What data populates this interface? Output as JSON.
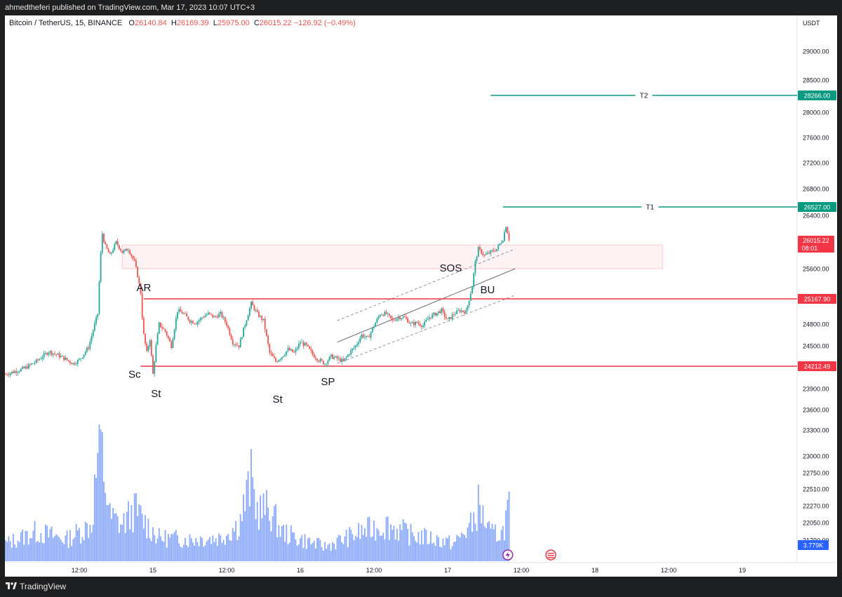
{
  "header": {
    "published_line": "ahmedtheferi published on TradingView.com, Mar 17, 2023 10:07 UTC+3"
  },
  "footer": {
    "brand": "TradingView"
  },
  "legend": {
    "symbol": "Bitcoin / TetherUS, 15, BINANCE",
    "open_label": "O",
    "open": "26140.84",
    "high_label": "H",
    "high": "26169.39",
    "low_label": "L",
    "low": "25975.00",
    "close_label": "C",
    "close": "26015.22",
    "change": "−126.92 (−0.49%)"
  },
  "chart_data": {
    "type": "candlestick",
    "symbol": "BTCUSDT",
    "interval": "15",
    "currency_label": "USDT",
    "price_axis": {
      "ticks": [
        29000,
        28500,
        28000,
        27600,
        27200,
        26800,
        26400,
        25600,
        24800,
        24500,
        23900,
        23600,
        23300,
        23000,
        22750,
        22510,
        22270,
        22050,
        21790
      ],
      "tick_labels": [
        "29000.00",
        "28500.00",
        "28000.00",
        "27600.00",
        "27200.00",
        "26800.00",
        "26400.00",
        "25600.00",
        "24800.00",
        "24500.00",
        "23900.00",
        "23600.00",
        "23300.00",
        "23000.00",
        "22750.00",
        "22510.00",
        "22270.00",
        "22050.00",
        "21790.00"
      ]
    },
    "time_axis": {
      "labels": [
        {
          "t": 12,
          "text": "12:00"
        },
        {
          "t": 24,
          "text": "15"
        },
        {
          "t": 36,
          "text": "12:00"
        },
        {
          "t": 48,
          "text": "16"
        },
        {
          "t": 60,
          "text": "12:00"
        },
        {
          "t": 72,
          "text": "17"
        },
        {
          "t": 84,
          "text": "12:00"
        },
        {
          "t": 96,
          "text": "18"
        },
        {
          "t": 108,
          "text": "12:00"
        },
        {
          "t": 120,
          "text": "19"
        }
      ]
    },
    "price_path": [
      [
        0,
        24100
      ],
      [
        3,
        24180
      ],
      [
        5,
        24280
      ],
      [
        7,
        24420
      ],
      [
        9,
        24350
      ],
      [
        11,
        24250
      ],
      [
        12,
        24300
      ],
      [
        13.5,
        24480
      ],
      [
        15,
        24950
      ],
      [
        15.3,
        25500
      ],
      [
        15.7,
        26150
      ],
      [
        16.2,
        25950
      ],
      [
        17,
        25800
      ],
      [
        18,
        26000
      ],
      [
        19,
        25850
      ],
      [
        20,
        25900
      ],
      [
        21,
        25700
      ],
      [
        21.5,
        25500
      ],
      [
        22,
        25250
      ],
      [
        22.4,
        24700
      ],
      [
        23,
        24400
      ],
      [
        23.5,
        24600
      ],
      [
        24,
        24100
      ],
      [
        24.5,
        24500
      ],
      [
        25,
        24800
      ],
      [
        26,
        24700
      ],
      [
        27,
        24500
      ],
      [
        28,
        25000
      ],
      [
        29,
        24950
      ],
      [
        30,
        24850
      ],
      [
        31,
        24820
      ],
      [
        32,
        24900
      ],
      [
        33,
        24950
      ],
      [
        34,
        24900
      ],
      [
        35,
        24950
      ],
      [
        36,
        24800
      ],
      [
        37,
        24550
      ],
      [
        38,
        24500
      ],
      [
        39,
        24800
      ],
      [
        40,
        25100
      ],
      [
        41,
        24950
      ],
      [
        42,
        24850
      ],
      [
        43,
        24400
      ],
      [
        44,
        24280
      ],
      [
        45,
        24350
      ],
      [
        46,
        24450
      ],
      [
        47,
        24400
      ],
      [
        48,
        24550
      ],
      [
        49,
        24500
      ],
      [
        50,
        24380
      ],
      [
        51,
        24300
      ],
      [
        52,
        24250
      ],
      [
        53,
        24350
      ],
      [
        54,
        24320
      ],
      [
        55,
        24280
      ],
      [
        56,
        24400
      ],
      [
        57,
        24500
      ],
      [
        58,
        24650
      ],
      [
        59,
        24600
      ],
      [
        60,
        24780
      ],
      [
        61,
        24950
      ],
      [
        62,
        24950
      ],
      [
        63,
        24850
      ],
      [
        64,
        24900
      ],
      [
        65,
        24900
      ],
      [
        66,
        24800
      ],
      [
        67,
        24820
      ],
      [
        68,
        24780
      ],
      [
        69,
        24900
      ],
      [
        70,
        24950
      ],
      [
        71,
        25000
      ],
      [
        72,
        24850
      ],
      [
        73,
        24950
      ],
      [
        74,
        25000
      ],
      [
        75,
        24980
      ],
      [
        76,
        25350
      ],
      [
        76.5,
        25700
      ],
      [
        77,
        25900
      ],
      [
        78,
        25800
      ],
      [
        79,
        25850
      ],
      [
        80,
        25900
      ],
      [
        81,
        26050
      ],
      [
        81.5,
        26250
      ],
      [
        82,
        26050
      ]
    ],
    "volume_path": [
      [
        0,
        1.2
      ],
      [
        5,
        2.0
      ],
      [
        10,
        1.5
      ],
      [
        14,
        2.5
      ],
      [
        15.3,
        8.5
      ],
      [
        16.2,
        5.5
      ],
      [
        17,
        3.0
      ],
      [
        19,
        2.5
      ],
      [
        21,
        3.5
      ],
      [
        23,
        2.5
      ],
      [
        25,
        1.6
      ],
      [
        30,
        1.5
      ],
      [
        35,
        1.6
      ],
      [
        38,
        2.5
      ],
      [
        40,
        5.5
      ],
      [
        41,
        3.5
      ],
      [
        43,
        3.5
      ],
      [
        45,
        2.0
      ],
      [
        48,
        1.5
      ],
      [
        52,
        1.0
      ],
      [
        55,
        1.5
      ],
      [
        58,
        2.0
      ],
      [
        62,
        2.5
      ],
      [
        66,
        1.8
      ],
      [
        70,
        1.5
      ],
      [
        73,
        1.2
      ],
      [
        76,
        2.5
      ],
      [
        77,
        3.8
      ],
      [
        79,
        1.8
      ],
      [
        81,
        2.0
      ],
      [
        82,
        3.8
      ]
    ],
    "volume_badge": "3.779K",
    "last_price_badge": {
      "value": 26015.22,
      "text": "26015.22",
      "countdown": "08:01",
      "color": "#f23645"
    },
    "horizontal_levels": [
      {
        "label": "T2",
        "value": 28266.0,
        "text": "28266.00",
        "t_start": 79,
        "color": "#089981"
      },
      {
        "label": "T1",
        "value": 26527.0,
        "text": "26527.00",
        "t_start": 81,
        "color": "#089981"
      },
      {
        "label": "",
        "value": 25167.9,
        "text": "25167.90",
        "t_start": 22.5,
        "color": "#f23645"
      },
      {
        "label": "",
        "value": 24212.49,
        "text": "24212.49",
        "t_start": 22,
        "color": "#f23645"
      }
    ],
    "zone": {
      "t_start": 19,
      "t_end": 107,
      "top": 25960,
      "bottom": 25600,
      "color": "#f23645"
    },
    "channel": {
      "upper": [
        [
          54,
          24850
        ],
        [
          83,
          25900
        ]
      ],
      "middle": [
        [
          54,
          24550
        ],
        [
          83,
          25600
        ]
      ],
      "lower": [
        [
          54,
          24250
        ],
        [
          83,
          25220
        ]
      ]
    },
    "annotations": [
      {
        "text": "AR",
        "t": 22.5,
        "price": 25280
      },
      {
        "text": "Sc",
        "t": 21,
        "price": 24050
      },
      {
        "text": "St",
        "t": 24.5,
        "price": 23780
      },
      {
        "text": "St",
        "t": 44.3,
        "price": 23700
      },
      {
        "text": "SP",
        "t": 52.5,
        "price": 23950
      },
      {
        "text": "SOS",
        "t": 72.5,
        "price": 25560
      },
      {
        "text": "BU",
        "t": 78.5,
        "price": 25250
      }
    ]
  }
}
